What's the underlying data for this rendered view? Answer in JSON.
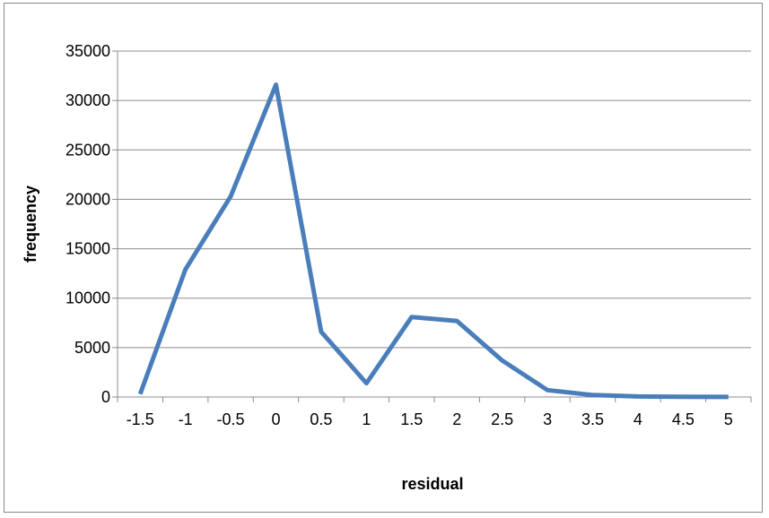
{
  "chart_data": {
    "type": "line",
    "xlabel": "residual",
    "ylabel": "frequency",
    "x": [
      -1.5,
      -1,
      -0.5,
      0,
      0.5,
      1,
      1.5,
      2,
      2.5,
      3,
      3.5,
      4,
      4.5,
      5
    ],
    "x_tick_labels": [
      "-1.5",
      "-1",
      "-0.5",
      "0",
      "0.5",
      "1",
      "1.5",
      "2",
      "2.5",
      "3",
      "3.5",
      "4",
      "4.5",
      "5"
    ],
    "y_tick_values": [
      0,
      5000,
      10000,
      15000,
      20000,
      25000,
      30000,
      35000
    ],
    "y_tick_labels": [
      "0",
      "5000",
      "10000",
      "15000",
      "20000",
      "25000",
      "30000",
      "35000"
    ],
    "ylim": [
      0,
      35000
    ],
    "grid": "horizontal",
    "legend": "none",
    "series": [
      {
        "values": [
          300,
          12900,
          20300,
          31600,
          6600,
          1400,
          8100,
          7700,
          3700,
          700,
          200,
          50,
          20,
          10
        ],
        "color": "#4a7ebb"
      }
    ]
  }
}
